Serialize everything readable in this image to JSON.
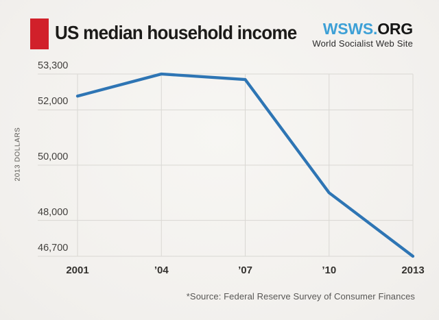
{
  "header": {
    "title": "US median household income",
    "accent_color": "#d1202a"
  },
  "logo": {
    "brand_primary": "WSWS.",
    "brand_secondary": "ORG",
    "brand_color": "#3da0d6",
    "subtitle": "World Socialist Web Site"
  },
  "chart_data": {
    "type": "line",
    "title": "US median household income",
    "x": [
      2001,
      2004,
      2007,
      2010,
      2013
    ],
    "x_tick_labels": [
      "2001",
      "’04",
      "’07",
      "’10",
      "2013"
    ],
    "series": [
      {
        "name": "US median household income, 2013 dollars",
        "values": [
          52500,
          53300,
          53100,
          49000,
          46700
        ]
      }
    ],
    "y_ticks": [
      53300,
      52000,
      50000,
      48000,
      46700
    ],
    "y_tick_labels": [
      "53,300",
      "52,000",
      "50,000",
      "48,000",
      "46,700"
    ],
    "ylim": [
      46700,
      53300
    ],
    "ylabel": "2013 DOLLARS",
    "xlabel": "",
    "grid": true,
    "legend": "none",
    "line_color": "#2e75b4",
    "gridline_color": "#d9d7d3"
  },
  "footer": {
    "source": "*Source: Federal Reserve Survey of Consumer Finances"
  }
}
